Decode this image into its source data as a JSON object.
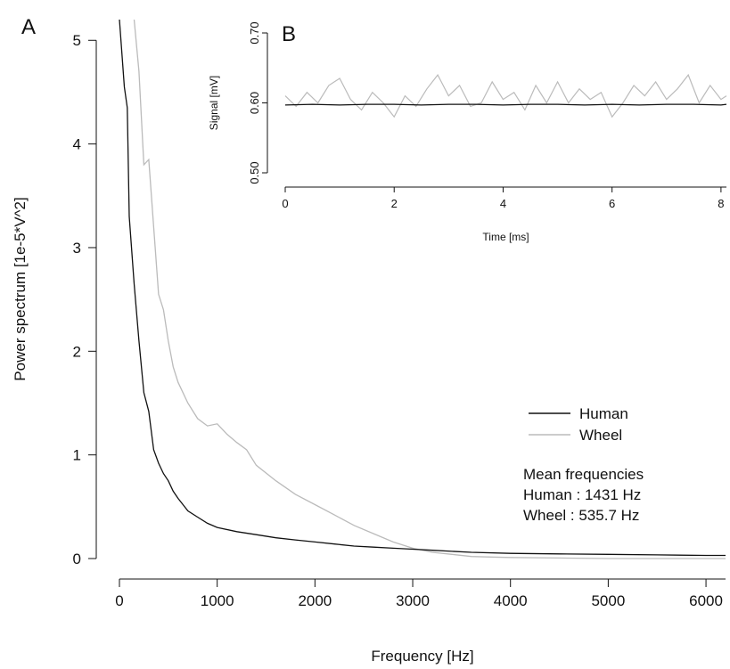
{
  "chart_data": [
    {
      "panel": "A",
      "type": "line",
      "xlabel": "Frequency [Hz]",
      "ylabel": "Power spectrum [1e-5*V^2]",
      "xlim": [
        0,
        6200
      ],
      "ylim": [
        0,
        5.2
      ],
      "xticks": [
        0,
        1000,
        2000,
        3000,
        4000,
        5000,
        6000
      ],
      "yticks": [
        0,
        1,
        2,
        3,
        4,
        5
      ],
      "grid": false,
      "legend_position": "middle-right",
      "series": [
        {
          "name": "Human",
          "color": "#111111",
          "x": [
            0,
            50,
            80,
            100,
            150,
            200,
            250,
            300,
            350,
            400,
            450,
            500,
            550,
            600,
            650,
            700,
            800,
            900,
            1000,
            1200,
            1400,
            1600,
            1800,
            2000,
            2200,
            2400,
            2600,
            2800,
            3000,
            3200,
            3400,
            3600,
            4000,
            4500,
            5000,
            5500,
            6000,
            6200
          ],
          "y": [
            5.2,
            4.55,
            4.35,
            3.3,
            2.65,
            2.1,
            1.6,
            1.42,
            1.05,
            0.92,
            0.82,
            0.75,
            0.65,
            0.58,
            0.52,
            0.46,
            0.4,
            0.34,
            0.3,
            0.26,
            0.23,
            0.2,
            0.18,
            0.16,
            0.14,
            0.12,
            0.11,
            0.1,
            0.09,
            0.08,
            0.07,
            0.06,
            0.05,
            0.045,
            0.04,
            0.035,
            0.03,
            0.03
          ]
        },
        {
          "name": "Wheel",
          "color": "#bbbbbb",
          "x": [
            150,
            200,
            250,
            300,
            350,
            400,
            450,
            500,
            550,
            600,
            700,
            800,
            900,
            1000,
            1100,
            1200,
            1300,
            1400,
            1600,
            1800,
            2000,
            2200,
            2400,
            2600,
            2800,
            3000,
            3200,
            3400,
            3600,
            3800,
            4000,
            4500,
            5000,
            5500,
            6000,
            6200
          ],
          "y": [
            5.2,
            4.7,
            3.8,
            3.85,
            3.2,
            2.55,
            2.4,
            2.1,
            1.85,
            1.7,
            1.5,
            1.35,
            1.28,
            1.3,
            1.2,
            1.12,
            1.05,
            0.9,
            0.75,
            0.62,
            0.52,
            0.42,
            0.32,
            0.24,
            0.16,
            0.1,
            0.06,
            0.04,
            0.02,
            0.015,
            0.01,
            0.005,
            0.0,
            0.0,
            0.0,
            0.0
          ]
        }
      ]
    },
    {
      "panel": "B",
      "type": "line",
      "xlabel": "Time [ms]",
      "ylabel": "Signal [mV]",
      "xlim": [
        0,
        8.1
      ],
      "ylim": [
        0.5,
        0.7
      ],
      "xticks": [
        0,
        2,
        4,
        6,
        8
      ],
      "yticks": [
        0.5,
        0.6,
        0.7
      ],
      "ytick_labels": [
        "0.50",
        "0.60",
        "0.70"
      ],
      "grid": false,
      "series": [
        {
          "name": "Human",
          "color": "#111111",
          "x": [
            0,
            0.5,
            1,
            1.5,
            2,
            2.5,
            3,
            3.5,
            4,
            4.5,
            5,
            5.5,
            6,
            6.5,
            7,
            7.5,
            8,
            8.1
          ],
          "y": [
            0.597,
            0.598,
            0.597,
            0.598,
            0.598,
            0.597,
            0.598,
            0.598,
            0.597,
            0.598,
            0.598,
            0.597,
            0.598,
            0.597,
            0.598,
            0.598,
            0.597,
            0.598
          ]
        },
        {
          "name": "Wheel",
          "color": "#bbbbbb",
          "x": [
            0,
            0.2,
            0.4,
            0.6,
            0.8,
            1.0,
            1.2,
            1.4,
            1.6,
            1.8,
            2.0,
            2.2,
            2.4,
            2.6,
            2.8,
            3.0,
            3.2,
            3.4,
            3.6,
            3.8,
            4.0,
            4.2,
            4.4,
            4.6,
            4.8,
            5.0,
            5.2,
            5.4,
            5.6,
            5.8,
            6.0,
            6.2,
            6.4,
            6.6,
            6.8,
            7.0,
            7.2,
            7.4,
            7.6,
            7.8,
            8.0,
            8.1
          ],
          "y": [
            0.61,
            0.595,
            0.615,
            0.6,
            0.625,
            0.635,
            0.605,
            0.59,
            0.615,
            0.6,
            0.58,
            0.61,
            0.595,
            0.62,
            0.64,
            0.61,
            0.625,
            0.595,
            0.6,
            0.63,
            0.605,
            0.615,
            0.59,
            0.625,
            0.6,
            0.63,
            0.6,
            0.62,
            0.605,
            0.615,
            0.58,
            0.6,
            0.625,
            0.61,
            0.63,
            0.605,
            0.62,
            0.64,
            0.6,
            0.625,
            0.605,
            0.61
          ]
        }
      ]
    }
  ],
  "panel_labels": {
    "a": "A",
    "b": "B"
  },
  "legend": {
    "human": "Human",
    "wheel": "Wheel"
  },
  "stats": {
    "heading": "Mean frequencies",
    "human": "Human : 1431 Hz",
    "wheel": "Wheel : 535.7 Hz"
  }
}
